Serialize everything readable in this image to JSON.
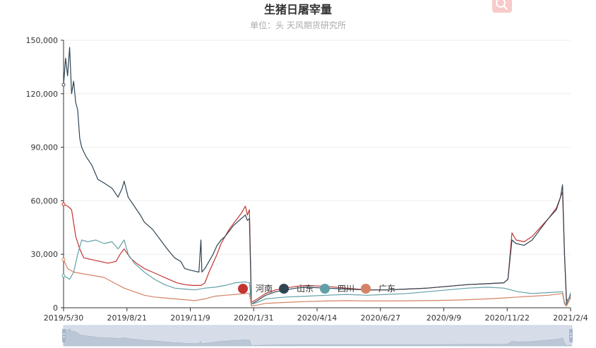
{
  "title": "生猪日屠宰量",
  "subtitle": "单位：头   天风期货研究所",
  "toolbox": {
    "icon": "magnifier-icon"
  },
  "chart_data": {
    "type": "line",
    "title": "生猪日屠宰量",
    "subtitle": "单位：头   天风期货研究所",
    "x_tick_labels": [
      "2019/5/30",
      "2019/8/21",
      "2019/11/9",
      "2020/1/31",
      "2020/4/14",
      "2020/6/27",
      "2020/9/9",
      "2020/11/22",
      "2021/2/4"
    ],
    "y_tick_labels": [
      "0",
      "30,000",
      "60,000",
      "90,000",
      "120,000",
      "150,000"
    ],
    "ylim": [
      0,
      150000
    ],
    "xlim": [
      0,
      251
    ],
    "legend": {
      "position": "center-bottom"
    },
    "series": [
      {
        "name": "河南",
        "color": "#c23531",
        "points": [
          [
            0,
            58000
          ],
          [
            2,
            57000
          ],
          [
            4,
            55000
          ],
          [
            6,
            40000
          ],
          [
            8,
            33000
          ],
          [
            10,
            28000
          ],
          [
            14,
            27000
          ],
          [
            18,
            26000
          ],
          [
            22,
            25000
          ],
          [
            26,
            26000
          ],
          [
            28,
            30000
          ],
          [
            30,
            33000
          ],
          [
            33,
            28000
          ],
          [
            36,
            25000
          ],
          [
            40,
            22000
          ],
          [
            44,
            20000
          ],
          [
            48,
            18000
          ],
          [
            52,
            16000
          ],
          [
            56,
            14000
          ],
          [
            60,
            13000
          ],
          [
            64,
            12500
          ],
          [
            68,
            12500
          ],
          [
            70,
            14000
          ],
          [
            72,
            20000
          ],
          [
            74,
            25000
          ],
          [
            76,
            30000
          ],
          [
            78,
            36000
          ],
          [
            80,
            40000
          ],
          [
            82,
            44000
          ],
          [
            84,
            47000
          ],
          [
            86,
            50000
          ],
          [
            88,
            53000
          ],
          [
            90,
            57000
          ],
          [
            91,
            52000
          ],
          [
            92,
            55000
          ],
          [
            93,
            3000
          ],
          [
            96,
            5000
          ],
          [
            100,
            8000
          ],
          [
            105,
            10000
          ],
          [
            110,
            11000
          ],
          [
            115,
            12000
          ],
          [
            120,
            12500
          ],
          [
            130,
            12000
          ],
          [
            140,
            11000
          ],
          [
            150,
            10000
          ],
          [
            160,
            10000
          ],
          [
            170,
            10500
          ],
          [
            180,
            11000
          ],
          [
            190,
            12000
          ],
          [
            200,
            13000
          ],
          [
            210,
            13500
          ],
          [
            218,
            14000
          ],
          [
            220,
            16000
          ],
          [
            222,
            42000
          ],
          [
            224,
            38000
          ],
          [
            228,
            37000
          ],
          [
            232,
            40000
          ],
          [
            236,
            45000
          ],
          [
            240,
            50000
          ],
          [
            244,
            56000
          ],
          [
            246,
            62000
          ],
          [
            247,
            65000
          ],
          [
            248,
            30000
          ],
          [
            249,
            4000
          ],
          [
            251,
            6000
          ]
        ]
      },
      {
        "name": "山东",
        "color": "#2f4554",
        "points": [
          [
            0,
            125000
          ],
          [
            1,
            140000
          ],
          [
            2,
            130000
          ],
          [
            3,
            146000
          ],
          [
            4,
            120000
          ],
          [
            5,
            127000
          ],
          [
            6,
            115000
          ],
          [
            7,
            111000
          ],
          [
            8,
            95000
          ],
          [
            9,
            90000
          ],
          [
            11,
            85000
          ],
          [
            14,
            80000
          ],
          [
            17,
            72000
          ],
          [
            20,
            70000
          ],
          [
            24,
            67000
          ],
          [
            27,
            62000
          ],
          [
            29,
            67000
          ],
          [
            30,
            71000
          ],
          [
            32,
            62000
          ],
          [
            35,
            57000
          ],
          [
            38,
            52000
          ],
          [
            40,
            48000
          ],
          [
            44,
            44000
          ],
          [
            48,
            38000
          ],
          [
            52,
            32000
          ],
          [
            55,
            28000
          ],
          [
            58,
            26000
          ],
          [
            60,
            22000
          ],
          [
            63,
            21000
          ],
          [
            65,
            20500
          ],
          [
            67,
            20000
          ],
          [
            68,
            38000
          ],
          [
            68.5,
            20000
          ],
          [
            70,
            22000
          ],
          [
            72,
            26000
          ],
          [
            74,
            30000
          ],
          [
            76,
            35000
          ],
          [
            78,
            38000
          ],
          [
            80,
            40000
          ],
          [
            82,
            43000
          ],
          [
            84,
            46000
          ],
          [
            86,
            48000
          ],
          [
            88,
            50000
          ],
          [
            90,
            52000
          ],
          [
            91,
            49000
          ],
          [
            92,
            50000
          ],
          [
            93,
            2000
          ],
          [
            96,
            4000
          ],
          [
            100,
            7000
          ],
          [
            105,
            9000
          ],
          [
            110,
            10000
          ],
          [
            115,
            11000
          ],
          [
            120,
            11500
          ],
          [
            130,
            11000
          ],
          [
            140,
            10500
          ],
          [
            150,
            10000
          ],
          [
            160,
            10000
          ],
          [
            170,
            10500
          ],
          [
            180,
            11000
          ],
          [
            190,
            12000
          ],
          [
            200,
            13000
          ],
          [
            210,
            13500
          ],
          [
            218,
            14000
          ],
          [
            220,
            16000
          ],
          [
            222,
            38000
          ],
          [
            224,
            36000
          ],
          [
            228,
            35000
          ],
          [
            232,
            38000
          ],
          [
            236,
            44000
          ],
          [
            240,
            50000
          ],
          [
            244,
            55000
          ],
          [
            246,
            62000
          ],
          [
            247,
            69000
          ],
          [
            248,
            30000
          ],
          [
            249,
            2000
          ],
          [
            251,
            7500
          ]
        ]
      },
      {
        "name": "四川",
        "color": "#61a0a8",
        "points": [
          [
            0,
            18000
          ],
          [
            3,
            16000
          ],
          [
            5,
            20000
          ],
          [
            7,
            30000
          ],
          [
            9,
            38000
          ],
          [
            12,
            37000
          ],
          [
            16,
            38000
          ],
          [
            20,
            36000
          ],
          [
            24,
            37000
          ],
          [
            27,
            33000
          ],
          [
            30,
            38000
          ],
          [
            32,
            30000
          ],
          [
            35,
            25000
          ],
          [
            40,
            20000
          ],
          [
            45,
            16000
          ],
          [
            50,
            13000
          ],
          [
            55,
            11000
          ],
          [
            60,
            10500
          ],
          [
            65,
            10000
          ],
          [
            70,
            11000
          ],
          [
            75,
            11500
          ],
          [
            80,
            12500
          ],
          [
            85,
            14000
          ],
          [
            90,
            14500
          ],
          [
            92,
            14000
          ],
          [
            93,
            2000
          ],
          [
            96,
            3000
          ],
          [
            100,
            5000
          ],
          [
            110,
            6000
          ],
          [
            120,
            6500
          ],
          [
            130,
            7000
          ],
          [
            140,
            7500
          ],
          [
            150,
            7000
          ],
          [
            160,
            7500
          ],
          [
            170,
            8000
          ],
          [
            180,
            9000
          ],
          [
            190,
            10000
          ],
          [
            200,
            11000
          ],
          [
            210,
            11500
          ],
          [
            218,
            11000
          ],
          [
            225,
            9000
          ],
          [
            232,
            8000
          ],
          [
            240,
            8500
          ],
          [
            247,
            9000
          ],
          [
            248,
            3000
          ],
          [
            249,
            1000
          ],
          [
            251,
            8500
          ]
        ]
      },
      {
        "name": "广东",
        "color": "#d48265",
        "points": [
          [
            0,
            27000
          ],
          [
            2,
            22000
          ],
          [
            5,
            20000
          ],
          [
            10,
            19000
          ],
          [
            15,
            18000
          ],
          [
            20,
            17000
          ],
          [
            25,
            14000
          ],
          [
            30,
            11000
          ],
          [
            35,
            9000
          ],
          [
            40,
            7000
          ],
          [
            45,
            6000
          ],
          [
            50,
            5500
          ],
          [
            55,
            5000
          ],
          [
            60,
            4500
          ],
          [
            65,
            4000
          ],
          [
            70,
            5000
          ],
          [
            75,
            6500
          ],
          [
            80,
            7000
          ],
          [
            85,
            7500
          ],
          [
            90,
            8000
          ],
          [
            92,
            8000
          ],
          [
            93,
            1000
          ],
          [
            96,
            1500
          ],
          [
            100,
            2500
          ],
          [
            110,
            3000
          ],
          [
            120,
            3500
          ],
          [
            130,
            3800
          ],
          [
            140,
            4000
          ],
          [
            150,
            3800
          ],
          [
            160,
            3800
          ],
          [
            170,
            3900
          ],
          [
            180,
            4000
          ],
          [
            190,
            4200
          ],
          [
            200,
            4500
          ],
          [
            210,
            5000
          ],
          [
            218,
            5500
          ],
          [
            225,
            6000
          ],
          [
            232,
            6500
          ],
          [
            240,
            7000
          ],
          [
            247,
            8000
          ],
          [
            248,
            2000
          ],
          [
            249,
            1000
          ],
          [
            251,
            5500
          ]
        ]
      }
    ]
  }
}
